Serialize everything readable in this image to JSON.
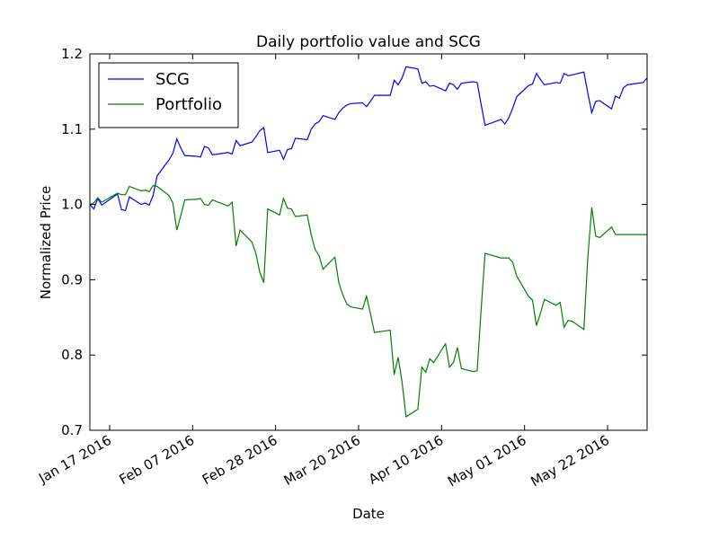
{
  "chart_data": {
    "type": "line",
    "title": "Daily portfolio value and SCG",
    "xlabel": "Date",
    "ylabel": "Normalized Price",
    "x": [
      "2016-01-12",
      "2016-01-13",
      "2016-01-14",
      "2016-01-15",
      "2016-01-19",
      "2016-01-20",
      "2016-01-21",
      "2016-01-22",
      "2016-01-25",
      "2016-01-26",
      "2016-01-27",
      "2016-01-28",
      "2016-01-29",
      "2016-02-01",
      "2016-02-02",
      "2016-02-03",
      "2016-02-04",
      "2016-02-05",
      "2016-02-08",
      "2016-02-09",
      "2016-02-10",
      "2016-02-11",
      "2016-02-12",
      "2016-02-16",
      "2016-02-17",
      "2016-02-18",
      "2016-02-19",
      "2016-02-22",
      "2016-02-23",
      "2016-02-24",
      "2016-02-25",
      "2016-02-26",
      "2016-02-29",
      "2016-03-01",
      "2016-03-02",
      "2016-03-03",
      "2016-03-04",
      "2016-03-07",
      "2016-03-08",
      "2016-03-09",
      "2016-03-10",
      "2016-03-11",
      "2016-03-14",
      "2016-03-15",
      "2016-03-16",
      "2016-03-17",
      "2016-03-18",
      "2016-03-21",
      "2016-03-22",
      "2016-03-23",
      "2016-03-24",
      "2016-03-28",
      "2016-03-29",
      "2016-03-30",
      "2016-03-31",
      "2016-04-01",
      "2016-04-04",
      "2016-04-05",
      "2016-04-06",
      "2016-04-07",
      "2016-04-08",
      "2016-04-11",
      "2016-04-12",
      "2016-04-13",
      "2016-04-14",
      "2016-04-15",
      "2016-04-18",
      "2016-04-19",
      "2016-04-20",
      "2016-04-21",
      "2016-04-25",
      "2016-04-26",
      "2016-04-27",
      "2016-04-28",
      "2016-04-29",
      "2016-05-02",
      "2016-05-03",
      "2016-05-04",
      "2016-05-05",
      "2016-05-06",
      "2016-05-09",
      "2016-05-10",
      "2016-05-11",
      "2016-05-12",
      "2016-05-13",
      "2016-05-16",
      "2016-05-17",
      "2016-05-18",
      "2016-05-19",
      "2016-05-20",
      "2016-05-23",
      "2016-05-24",
      "2016-05-25",
      "2016-05-26",
      "2016-05-27",
      "2016-05-31",
      "2016-06-01"
    ],
    "series": [
      {
        "name": "SCG",
        "color": "#0000ff",
        "values": [
          1.0,
          0.994,
          1.008,
          0.999,
          1.014,
          0.993,
          0.992,
          1.01,
          1.0,
          1.002,
          0.999,
          1.012,
          1.038,
          1.059,
          1.068,
          1.087,
          1.075,
          1.065,
          1.064,
          1.063,
          1.077,
          1.075,
          1.066,
          1.069,
          1.067,
          1.085,
          1.078,
          1.083,
          1.09,
          1.098,
          1.102,
          1.069,
          1.072,
          1.06,
          1.073,
          1.074,
          1.088,
          1.086,
          1.1,
          1.107,
          1.11,
          1.118,
          1.113,
          1.122,
          1.128,
          1.132,
          1.134,
          1.135,
          1.13,
          1.137,
          1.145,
          1.145,
          1.165,
          1.159,
          1.168,
          1.183,
          1.18,
          1.161,
          1.163,
          1.157,
          1.158,
          1.151,
          1.161,
          1.159,
          1.153,
          1.161,
          1.163,
          1.162,
          1.133,
          1.105,
          1.113,
          1.107,
          1.115,
          1.128,
          1.143,
          1.158,
          1.16,
          1.174,
          1.166,
          1.159,
          1.162,
          1.161,
          1.174,
          1.171,
          1.172,
          1.176,
          1.148,
          1.122,
          1.137,
          1.138,
          1.127,
          1.144,
          1.141,
          1.155,
          1.159,
          1.162,
          1.168
        ]
      },
      {
        "name": "Portfolio",
        "color": "#008000",
        "values": [
          1.0,
          1.002,
          1.009,
          1.003,
          1.015,
          1.013,
          1.013,
          1.024,
          1.018,
          1.019,
          1.017,
          1.025,
          1.024,
          1.012,
          1.002,
          0.966,
          0.985,
          1.006,
          1.007,
          1.008,
          1.0,
          0.999,
          1.006,
          0.998,
          1.003,
          0.945,
          0.966,
          0.95,
          0.935,
          0.91,
          0.896,
          0.994,
          0.986,
          1.008,
          0.995,
          0.994,
          0.984,
          0.986,
          0.96,
          0.94,
          0.932,
          0.914,
          0.93,
          0.896,
          0.88,
          0.868,
          0.864,
          0.861,
          0.878,
          0.855,
          0.83,
          0.833,
          0.774,
          0.797,
          0.764,
          0.718,
          0.728,
          0.784,
          0.777,
          0.795,
          0.79,
          0.815,
          0.784,
          0.79,
          0.81,
          0.782,
          0.778,
          0.779,
          0.86,
          0.935,
          0.929,
          0.929,
          0.929,
          0.923,
          0.905,
          0.878,
          0.873,
          0.839,
          0.855,
          0.874,
          0.866,
          0.87,
          0.837,
          0.846,
          0.845,
          0.834,
          0.93,
          0.996,
          0.958,
          0.956,
          0.97,
          0.96,
          0.96,
          0.96,
          0.96,
          0.96,
          0.96
        ]
      }
    ],
    "xlim": [
      "2016-01-12",
      "2016-06-01"
    ],
    "xticks": [
      {
        "value": "2016-01-17",
        "label": "Jan 17 2016"
      },
      {
        "value": "2016-02-07",
        "label": "Feb 07 2016"
      },
      {
        "value": "2016-02-28",
        "label": "Feb 28 2016"
      },
      {
        "value": "2016-03-20",
        "label": "Mar 20 2016"
      },
      {
        "value": "2016-04-10",
        "label": "Apr 10 2016"
      },
      {
        "value": "2016-05-01",
        "label": "May 01 2016"
      },
      {
        "value": "2016-05-22",
        "label": "May 22 2016"
      }
    ],
    "ylim": [
      0.7,
      1.2
    ],
    "yticks": [
      0.7,
      0.8,
      0.9,
      {
        "value": 1.0,
        "label": "1.0"
      },
      1.1,
      1.2
    ],
    "legend": "upper left"
  }
}
